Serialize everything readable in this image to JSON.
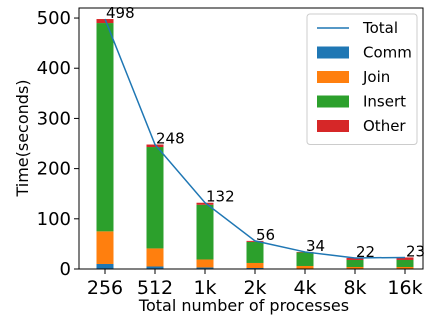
{
  "chart_data": {
    "type": "bar",
    "stacked": true,
    "xlabel": "Total number of processes",
    "ylabel": "Time(seconds)",
    "ylim": [
      0,
      520
    ],
    "yticks": [
      0,
      100,
      200,
      300,
      400,
      500
    ],
    "categories": [
      "256",
      "512",
      "1k",
      "2k",
      "4k",
      "8k",
      "16k"
    ],
    "series": [
      {
        "name": "Comm",
        "color": "#1f77b4",
        "values": [
          10,
          5,
          3,
          2,
          1,
          1,
          1
        ]
      },
      {
        "name": "Join",
        "color": "#ff7f0e",
        "values": [
          65,
          36,
          16,
          10,
          5,
          3,
          3
        ]
      },
      {
        "name": "Insert",
        "color": "#2ca02c",
        "values": [
          415,
          202,
          109,
          42,
          27,
          14,
          14
        ]
      },
      {
        "name": "Other",
        "color": "#d62728",
        "values": [
          8,
          5,
          4,
          2,
          1,
          4,
          5
        ]
      }
    ],
    "line": {
      "name": "Total",
      "color": "#1f77b4",
      "values": [
        498,
        248,
        132,
        56,
        34,
        22,
        23
      ]
    },
    "legend_position": "top-right",
    "grid": false
  }
}
